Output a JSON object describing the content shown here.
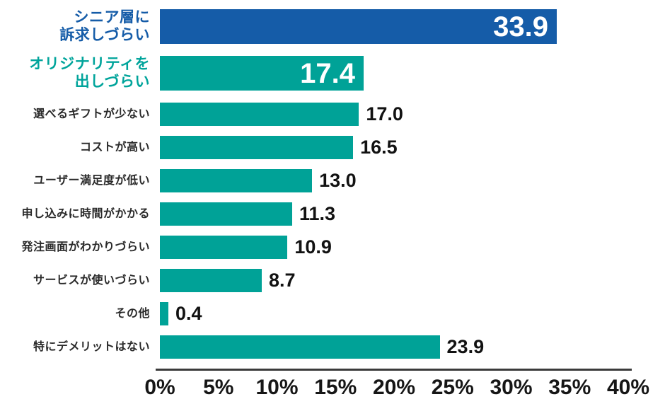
{
  "chart_data": {
    "type": "bar",
    "orientation": "horizontal",
    "title": "",
    "xlabel": "",
    "ylabel": "",
    "x_axis": {
      "min": 0,
      "max": 40,
      "unit": "%",
      "tick_step": 5,
      "tick_labels": [
        "0%",
        "5%",
        "10%",
        "15%",
        "20%",
        "25%",
        "30%",
        "35%",
        "40%"
      ]
    },
    "grid": false,
    "legend": false,
    "colors": {
      "blue": "#155CA8",
      "teal": "#00A297",
      "blue_label_text": "#155CA8",
      "teal_label_text": "#00A49B",
      "value_text": "#121212",
      "inside_value_text": "#FFFFFF",
      "axis_line": "#3B3B3B",
      "tick_text": "#161616"
    },
    "rows": [
      {
        "label": "シニア層に訴求しづらい",
        "label_lines": [
          "シニア層に",
          "訴求しづらい"
        ],
        "value": 33.9,
        "color": "blue",
        "emphasis": true,
        "value_inside": true
      },
      {
        "label": "オリジナリティを出しづらい",
        "label_lines": [
          "オリジナリティを",
          "出しづらい"
        ],
        "value": 17.4,
        "color": "teal",
        "emphasis": true,
        "value_inside": true
      },
      {
        "label": "選べるギフトが少ない",
        "value": 17.0,
        "color": "teal",
        "emphasis": false,
        "value_inside": false
      },
      {
        "label": "コストが高い",
        "value": 16.5,
        "color": "teal",
        "emphasis": false,
        "value_inside": false
      },
      {
        "label": "ユーザー満足度が低い",
        "value": 13.0,
        "color": "teal",
        "emphasis": false,
        "value_inside": false
      },
      {
        "label": "申し込みに時間がかかる",
        "value": 11.3,
        "color": "teal",
        "emphasis": false,
        "value_inside": false
      },
      {
        "label": "発注画面がわかりづらい",
        "value": 10.9,
        "color": "teal",
        "emphasis": false,
        "value_inside": false
      },
      {
        "label": "サービスが使いづらい",
        "value": 8.7,
        "color": "teal",
        "emphasis": false,
        "value_inside": false
      },
      {
        "label": "その他",
        "value": 0.4,
        "color": "teal",
        "emphasis": false,
        "value_inside": false
      },
      {
        "label": "特にデメリットはない",
        "value": 23.9,
        "color": "teal",
        "emphasis": false,
        "value_inside": false
      }
    ]
  }
}
